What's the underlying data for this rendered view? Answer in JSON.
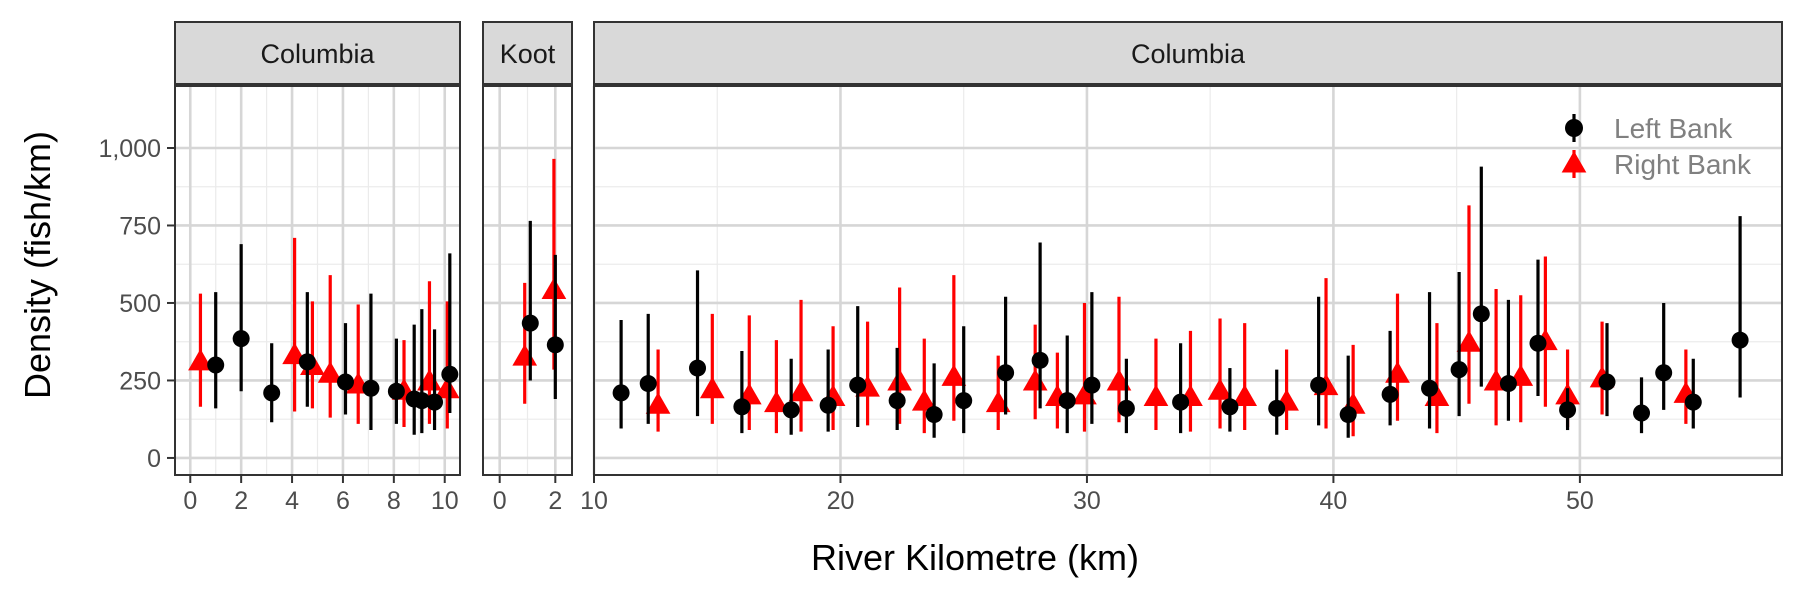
{
  "chart_data": {
    "type": "scatter",
    "title": "",
    "xlabel": "River Kilometre (km)",
    "ylabel": "Density (fish/km)",
    "ylim": [
      -55,
      1200
    ],
    "y_ticks": [
      0,
      250,
      500,
      750,
      1000
    ],
    "y_tick_labels": [
      "0",
      "250",
      "500",
      "750",
      "1,000"
    ],
    "grid": true,
    "legend_position": "top-right",
    "colors": {
      "left": "#000000",
      "right": "#ff0000"
    },
    "series": [
      {
        "name": "Left Bank",
        "marker": "circle",
        "color": "#000000"
      },
      {
        "name": "Right Bank",
        "marker": "triangle",
        "color": "#ff0000"
      }
    ],
    "panels": [
      {
        "label": "Columbia",
        "xlim": [
          -0.6,
          10.6
        ],
        "x_ticks": [
          0,
          2,
          4,
          6,
          8,
          10
        ],
        "x_tick_labels": [
          "0",
          "2",
          "4",
          "6",
          "8",
          "10"
        ],
        "left": [
          [
            1.0,
            300,
            160,
            535
          ],
          [
            2.0,
            385,
            215,
            690
          ],
          [
            3.2,
            210,
            115,
            370
          ],
          [
            4.6,
            310,
            165,
            535
          ],
          [
            6.1,
            245,
            140,
            435
          ],
          [
            7.1,
            225,
            90,
            530
          ],
          [
            8.1,
            215,
            110,
            385
          ],
          [
            8.8,
            190,
            75,
            430
          ],
          [
            9.1,
            185,
            80,
            480
          ],
          [
            9.6,
            180,
            90,
            415
          ],
          [
            10.2,
            270,
            145,
            660
          ]
        ],
        "right": [
          [
            0.4,
            310,
            165,
            530
          ],
          [
            4.1,
            330,
            150,
            710
          ],
          [
            4.8,
            295,
            160,
            505
          ],
          [
            5.5,
            270,
            130,
            590
          ],
          [
            6.6,
            235,
            110,
            495
          ],
          [
            8.4,
            215,
            100,
            380
          ],
          [
            9.4,
            245,
            110,
            570
          ],
          [
            10.1,
            220,
            95,
            505
          ]
        ]
      },
      {
        "label": "Koot",
        "xlim": [
          -0.6,
          2.6
        ],
        "x_ticks": [
          0,
          2
        ],
        "x_tick_labels": [
          "0",
          "2"
        ],
        "left": [
          [
            1.1,
            435,
            250,
            765
          ],
          [
            2.0,
            365,
            190,
            655
          ]
        ],
        "right": [
          [
            0.9,
            325,
            175,
            565
          ],
          [
            1.95,
            540,
            285,
            965
          ]
        ]
      },
      {
        "label": "Columbia",
        "xlim": [
          10,
          58.2
        ],
        "x_ticks": [
          10,
          20,
          30,
          40,
          50
        ],
        "x_tick_labels": [
          "10",
          "20",
          "30",
          "40",
          "50"
        ],
        "left": [
          [
            11.1,
            210,
            95,
            445
          ],
          [
            12.2,
            240,
            110,
            465
          ],
          [
            14.2,
            290,
            135,
            605
          ],
          [
            16.0,
            165,
            80,
            345
          ],
          [
            18.0,
            155,
            75,
            320
          ],
          [
            19.5,
            170,
            85,
            350
          ],
          [
            20.7,
            235,
            100,
            490
          ],
          [
            22.3,
            185,
            90,
            355
          ],
          [
            23.8,
            140,
            65,
            305
          ],
          [
            25.0,
            185,
            80,
            425
          ],
          [
            26.7,
            275,
            140,
            520
          ],
          [
            28.1,
            315,
            160,
            695
          ],
          [
            29.2,
            185,
            80,
            395
          ],
          [
            30.2,
            235,
            110,
            535
          ],
          [
            31.6,
            160,
            80,
            320
          ],
          [
            33.8,
            180,
            80,
            370
          ],
          [
            35.8,
            165,
            85,
            290
          ],
          [
            37.7,
            160,
            75,
            285
          ],
          [
            39.4,
            235,
            105,
            520
          ],
          [
            40.6,
            140,
            65,
            330
          ],
          [
            42.3,
            205,
            105,
            410
          ],
          [
            43.9,
            225,
            95,
            535
          ],
          [
            45.1,
            285,
            135,
            600
          ],
          [
            46.0,
            465,
            230,
            940
          ],
          [
            47.1,
            240,
            120,
            510
          ],
          [
            48.3,
            370,
            200,
            640
          ],
          [
            49.5,
            155,
            90,
            225
          ],
          [
            51.1,
            245,
            135,
            435
          ],
          [
            52.5,
            145,
            80,
            260
          ],
          [
            53.4,
            275,
            155,
            500
          ],
          [
            54.6,
            180,
            95,
            320
          ],
          [
            56.5,
            380,
            195,
            780
          ]
        ],
        "right": [
          [
            12.6,
            170,
            85,
            350
          ],
          [
            14.8,
            220,
            110,
            465
          ],
          [
            16.3,
            200,
            90,
            460
          ],
          [
            17.4,
            175,
            80,
            380
          ],
          [
            18.4,
            210,
            85,
            510
          ],
          [
            19.7,
            195,
            90,
            425
          ],
          [
            21.1,
            225,
            105,
            440
          ],
          [
            22.4,
            245,
            110,
            550
          ],
          [
            23.4,
            180,
            80,
            385
          ],
          [
            24.6,
            260,
            120,
            590
          ],
          [
            26.4,
            175,
            90,
            330
          ],
          [
            27.9,
            245,
            125,
            430
          ],
          [
            28.8,
            195,
            95,
            340
          ],
          [
            29.9,
            200,
            85,
            500
          ],
          [
            31.3,
            245,
            115,
            520
          ],
          [
            32.8,
            195,
            90,
            385
          ],
          [
            34.2,
            195,
            85,
            410
          ],
          [
            35.4,
            215,
            95,
            450
          ],
          [
            36.4,
            195,
            90,
            435
          ],
          [
            38.1,
            180,
            90,
            350
          ],
          [
            39.7,
            230,
            95,
            580
          ],
          [
            40.8,
            170,
            70,
            365
          ],
          [
            42.6,
            270,
            120,
            530
          ],
          [
            44.2,
            195,
            80,
            435
          ],
          [
            45.5,
            370,
            175,
            815
          ],
          [
            46.6,
            245,
            105,
            545
          ],
          [
            47.6,
            260,
            115,
            525
          ],
          [
            48.6,
            375,
            165,
            650
          ],
          [
            49.5,
            200,
            100,
            350
          ],
          [
            50.9,
            255,
            140,
            440
          ],
          [
            54.3,
            205,
            110,
            350
          ]
        ]
      }
    ]
  }
}
